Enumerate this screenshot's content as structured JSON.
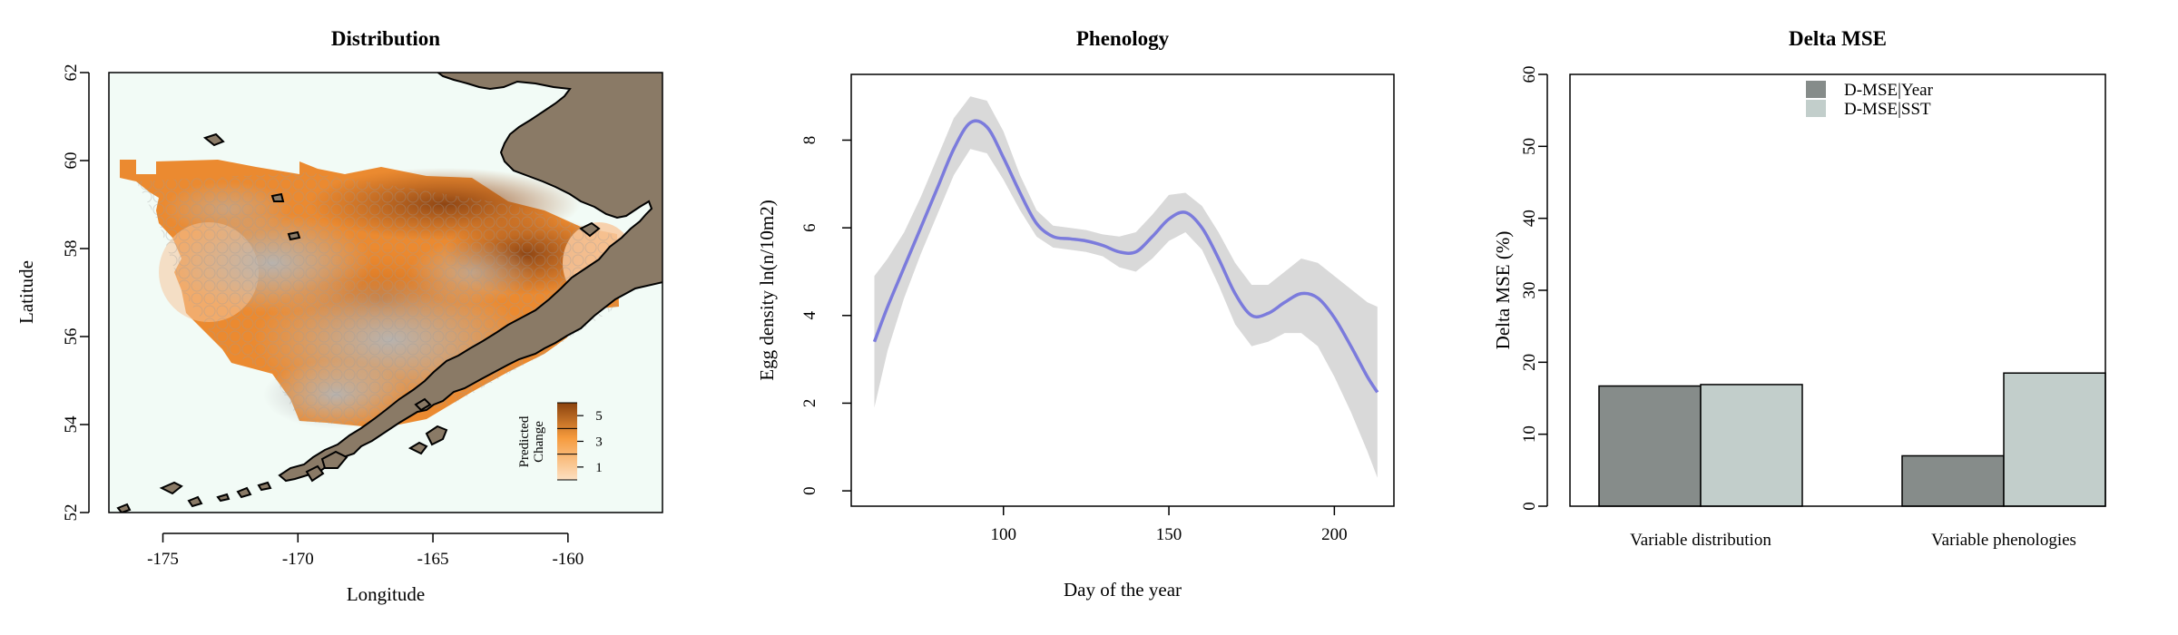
{
  "chart_data": [
    {
      "type": "heatmap",
      "title": "Distribution",
      "xlabel": "Longitude",
      "ylabel": "Latitude",
      "xlim": [
        -177,
        -156.5
      ],
      "ylim": [
        52,
        62
      ],
      "xticks": [
        -175,
        -170,
        -165,
        -160
      ],
      "xtick_labels": [
        "-175",
        "-170",
        "-165",
        "-160"
      ],
      "yticks": [
        52,
        54,
        56,
        58,
        60,
        62
      ],
      "ytick_labels": [
        "52",
        "54",
        "56",
        "58",
        "60",
        "62"
      ],
      "legend": {
        "title_lines": [
          "Predicted",
          "Change"
        ],
        "ticks": [
          1,
          3,
          5
        ],
        "tick_labels": [
          "1",
          "3",
          "5"
        ],
        "range": [
          0,
          6
        ],
        "placement": "bottom-right"
      },
      "colors": {
        "ocean": "#f2fbf6",
        "land": "#8a7a66",
        "low": "#fde0c2",
        "mid": "#f59a3c",
        "high": "#9a4a12",
        "overlay": "#b8b8b8"
      }
    },
    {
      "type": "line",
      "title": "Phenology",
      "xlabel": "Day of the year",
      "ylabel": "Egg density ln(n/10m2)",
      "xlim": [
        54,
        218
      ],
      "ylim": [
        -0.35,
        9.5
      ],
      "xticks": [
        100,
        150,
        200
      ],
      "xtick_labels": [
        "100",
        "150",
        "200"
      ],
      "yticks": [
        0,
        2,
        4,
        6,
        8
      ],
      "ytick_labels": [
        "0",
        "2",
        "4",
        "6",
        "8"
      ],
      "series": [
        {
          "x": [
            61,
            65,
            70,
            75,
            80,
            85,
            90,
            95,
            100,
            105,
            110,
            115,
            120,
            125,
            130,
            135,
            140,
            145,
            150,
            155,
            160,
            165,
            170,
            175,
            180,
            185,
            190,
            195,
            200,
            205,
            210,
            213
          ],
          "y": [
            3.4,
            4.2,
            5.1,
            6.0,
            6.9,
            7.8,
            8.4,
            8.3,
            7.6,
            6.8,
            6.1,
            5.8,
            5.75,
            5.7,
            5.6,
            5.45,
            5.45,
            5.8,
            6.2,
            6.35,
            6.0,
            5.3,
            4.5,
            4.0,
            4.05,
            4.3,
            4.5,
            4.4,
            3.95,
            3.3,
            2.6,
            2.25
          ],
          "lower": [
            1.9,
            3.2,
            4.4,
            5.4,
            6.3,
            7.2,
            7.8,
            7.7,
            7.1,
            6.4,
            5.8,
            5.55,
            5.5,
            5.45,
            5.35,
            5.1,
            5.0,
            5.3,
            5.7,
            5.9,
            5.5,
            4.7,
            3.8,
            3.3,
            3.4,
            3.6,
            3.6,
            3.3,
            2.6,
            1.8,
            0.9,
            0.3
          ],
          "upper": [
            4.9,
            5.3,
            5.9,
            6.7,
            7.6,
            8.5,
            9.0,
            8.9,
            8.2,
            7.2,
            6.4,
            6.05,
            6.0,
            5.95,
            5.85,
            5.8,
            5.9,
            6.3,
            6.75,
            6.8,
            6.5,
            5.9,
            5.2,
            4.7,
            4.7,
            5.0,
            5.3,
            5.2,
            4.9,
            4.6,
            4.3,
            4.2
          ]
        }
      ],
      "colors": {
        "line": "#7b7bdc",
        "band": "#d9d9d9"
      }
    },
    {
      "type": "bar",
      "title": "Delta MSE",
      "xlabel": "",
      "ylabel": "Delta MSE (%)",
      "ylim": [
        0,
        60
      ],
      "yticks": [
        0,
        10,
        20,
        30,
        40,
        50,
        60
      ],
      "ytick_labels": [
        "0",
        "10",
        "20",
        "30",
        "40",
        "50",
        "60"
      ],
      "categories": [
        "Variable distribution",
        "Variable phenologies"
      ],
      "series": [
        {
          "name": "D-MSE|Year",
          "values": [
            16.7,
            7.0
          ],
          "color": "#868c8a"
        },
        {
          "name": "D-MSE|SST",
          "values": [
            16.9,
            18.5
          ],
          "color": "#c2cecb"
        }
      ],
      "legend_placement": "top-right"
    }
  ]
}
